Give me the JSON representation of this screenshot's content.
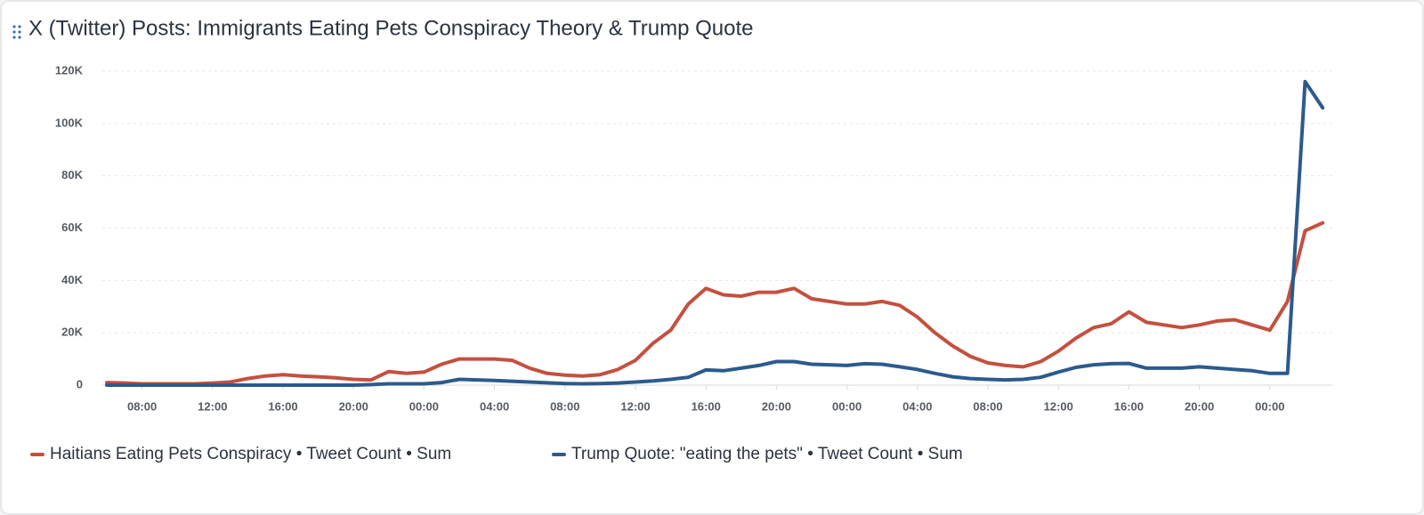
{
  "chart_data": {
    "type": "line",
    "title": "X (Twitter) Posts: Immigrants Eating Pets Conspiracy Theory & Trump Quote",
    "categories": [
      null,
      null,
      "08:00",
      null,
      null,
      null,
      "12:00",
      null,
      null,
      null,
      "16:00",
      null,
      null,
      null,
      "20:00",
      null,
      null,
      null,
      "00:00",
      null,
      null,
      null,
      "04:00",
      null,
      null,
      null,
      "08:00",
      null,
      null,
      null,
      "12:00",
      null,
      null,
      null,
      "16:00",
      null,
      null,
      null,
      "20:00",
      null,
      null,
      null,
      "00:00",
      null,
      null,
      null,
      "04:00",
      null,
      null,
      null,
      "08:00",
      null,
      null,
      null,
      "12:00",
      null,
      null,
      null,
      "16:00",
      null,
      null,
      null,
      "20:00",
      null,
      null,
      null,
      "00:00",
      null,
      null,
      null
    ],
    "series": [
      {
        "name": "Haitians Eating Pets Conspiracy • Tweet Count • Sum",
        "color": "#c4503f",
        "values": [
          1000,
          800,
          500,
          500,
          500,
          500,
          800,
          1200,
          2500,
          3500,
          4000,
          3500,
          3200,
          2800,
          2200,
          2000,
          5200,
          4500,
          5000,
          8000,
          10000,
          10000,
          10000,
          9500,
          6500,
          4500,
          3800,
          3500,
          4000,
          6000,
          9500,
          16000,
          21000,
          31000,
          37000,
          34500,
          34000,
          35500,
          35500,
          37000,
          33000,
          32000,
          31000,
          31000,
          32000,
          30500,
          26000,
          20000,
          15000,
          11000,
          8500,
          7500,
          7000,
          9000,
          13000,
          18000,
          22000,
          23500,
          28000,
          24000,
          23000,
          22000,
          23000,
          24500,
          25000,
          23000,
          21000,
          32000,
          59000,
          62000
        ]
      },
      {
        "name": "Trump Quote: \"eating the pets\" • Tweet Count • Sum",
        "color": "#2c5a8d",
        "values": [
          0,
          0,
          0,
          0,
          0,
          0,
          0,
          0,
          0,
          0,
          0,
          0,
          0,
          0,
          0,
          200,
          500,
          500,
          500,
          1000,
          2200,
          2000,
          1800,
          1500,
          1200,
          900,
          600,
          500,
          600,
          800,
          1200,
          1600,
          2200,
          3000,
          5800,
          5500,
          6500,
          7500,
          9000,
          9000,
          8000,
          7800,
          7500,
          8200,
          8000,
          7000,
          6000,
          4500,
          3200,
          2500,
          2200,
          2000,
          2200,
          3000,
          5000,
          6800,
          7800,
          8200,
          8300,
          6500,
          6500,
          6500,
          7000,
          6500,
          6000,
          5500,
          4500,
          4500,
          116000,
          106000
        ]
      }
    ],
    "ylim": [
      0,
      120000
    ],
    "yticks": [
      0,
      {
        "value": 20000,
        "label": "20K"
      },
      {
        "value": 40000,
        "label": "40K"
      },
      {
        "value": 60000,
        "label": "60K"
      },
      {
        "value": 80000,
        "label": "80K"
      },
      {
        "value": 100000,
        "label": "100K"
      },
      {
        "value": 120000,
        "label": "120K"
      }
    ],
    "grid": true
  }
}
